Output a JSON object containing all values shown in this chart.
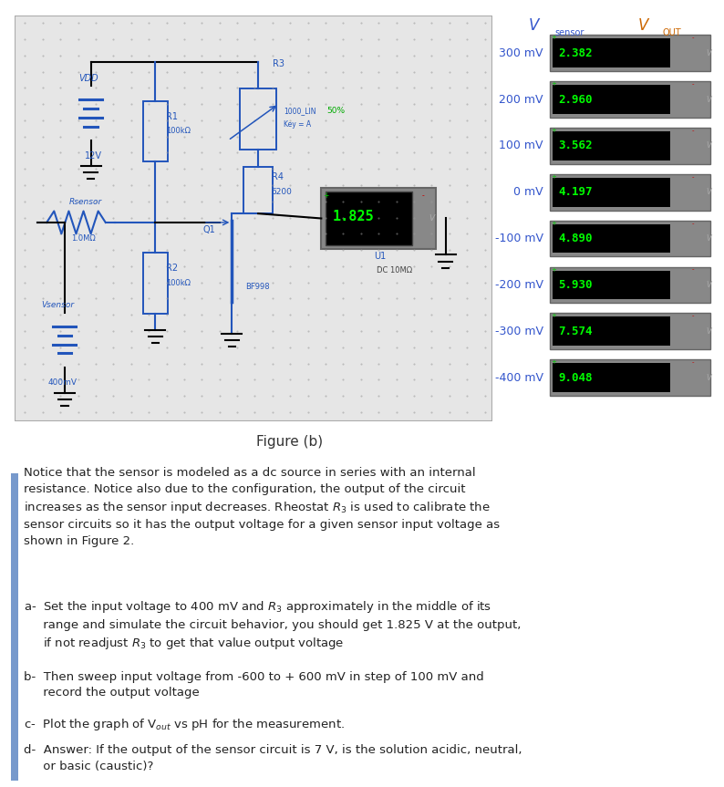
{
  "fig_width": 7.94,
  "fig_height": 8.63,
  "bg_color": "#ffffff",
  "table_rows": [
    {
      "vsensor": "300 mV",
      "vout": "2.382"
    },
    {
      "vsensor": "200 mV",
      "vout": "2.960"
    },
    {
      "vsensor": "100 mV",
      "vout": "3.562"
    },
    {
      "vsensor": "0 mV",
      "vout": "4.197"
    },
    {
      "vsensor": "-100 mV",
      "vout": "4.890"
    },
    {
      "vsensor": "-200 mV",
      "vout": "5.930"
    },
    {
      "vsensor": "-300 mV",
      "vout": "7.574"
    },
    {
      "vsensor": "-400 mV",
      "vout": "9.048"
    }
  ],
  "vsensor_color": "#3355cc",
  "vout_header_color": "#cc6600",
  "circuit_color": "#2255bb",
  "wire_color": "#000000",
  "display_green": "#00ff00",
  "display_bg": "#000000",
  "frame_color": "#888888",
  "plus_color": "#00cc00",
  "minus_color": "#cc0000",
  "v_color": "#999999",
  "dot_color": "#999999",
  "caption": "Figure (b)",
  "caption_fontsize": 11,
  "body_fontsize": 9.5,
  "bar_color": "#7799cc"
}
